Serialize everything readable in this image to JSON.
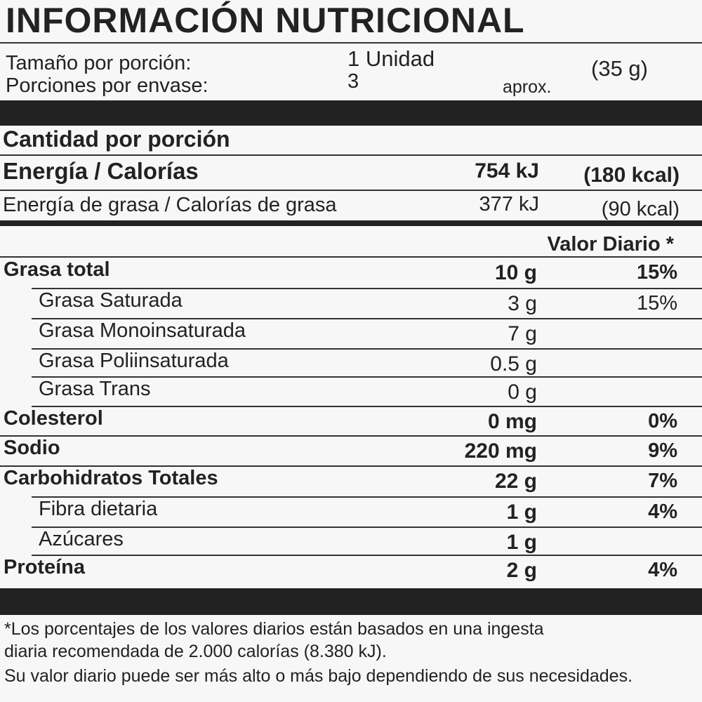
{
  "title": "INFORMACIÓN NUTRICIONAL",
  "serving": [
    {
      "label": "Tamaño por porción:",
      "value": "1 Unidad",
      "extra": "(35 g)"
    },
    {
      "label": "Porciones por envase:",
      "value": "3",
      "extra": "aprox."
    }
  ],
  "amount_header": "Cantidad por porción",
  "energy": [
    {
      "label": "Energía / Calorías",
      "kj": "754 kJ",
      "kcal": "(180 kcal)"
    },
    {
      "label": "Energía de grasa / Calorías de grasa",
      "kj": "377 kJ",
      "kcal": "(90 kcal)"
    }
  ],
  "dv_header": "Valor Diario *",
  "nutrients": [
    {
      "name": "Grasa total",
      "amount": "10 g",
      "dv": "15%"
    },
    {
      "name": "Grasa Saturada",
      "amount": "3 g",
      "dv": "15%"
    },
    {
      "name": "Grasa Monoinsaturada",
      "amount": "7 g"
    },
    {
      "name": "Grasa Poliinsaturada",
      "amount": "0.5 g"
    },
    {
      "name": "Grasa Trans",
      "amount": "0 g"
    },
    {
      "name": "Colesterol",
      "amount": "0 mg",
      "dv": "0%"
    },
    {
      "name": "Sodio",
      "amount": "220 mg",
      "dv": "9%"
    },
    {
      "name": "Carbohidratos Totales",
      "amount": "22 g",
      "dv": "7%"
    },
    {
      "name": "Fibra dietaria",
      "amount": "1 g",
      "dv": "4%"
    },
    {
      "name": "Azúcares",
      "amount": "1 g"
    },
    {
      "name": "Proteína",
      "amount": "2 g",
      "dv": "4%"
    }
  ],
  "footnote": [
    "*Los porcentajes de los valores diarios están basados en una ingesta",
    "diaria recomendada de 2.000 calorías (8.380 kJ).",
    "Su valor diario puede ser más alto o más bajo dependiendo de sus necesidades."
  ]
}
